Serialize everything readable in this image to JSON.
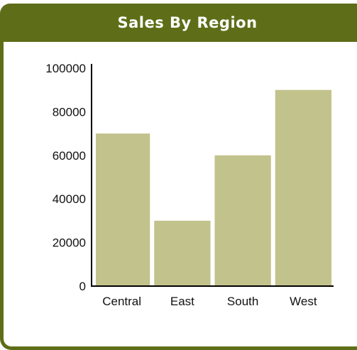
{
  "panel": {
    "title": "Sales By Region"
  },
  "colors": {
    "header": "#5e6e18",
    "bar": "#c2c28c",
    "axis": "#000000"
  },
  "chart_data": {
    "type": "bar",
    "title": "Sales By Region",
    "categories": [
      "Central",
      "East",
      "South",
      "West"
    ],
    "values": [
      70000,
      30000,
      60000,
      90000
    ],
    "xlabel": "",
    "ylabel": "",
    "ylim": [
      0,
      100000
    ],
    "yticks": [
      "0",
      "20000",
      "40000",
      "60000",
      "80000",
      "100000"
    ],
    "grid": false,
    "legend": "none"
  }
}
